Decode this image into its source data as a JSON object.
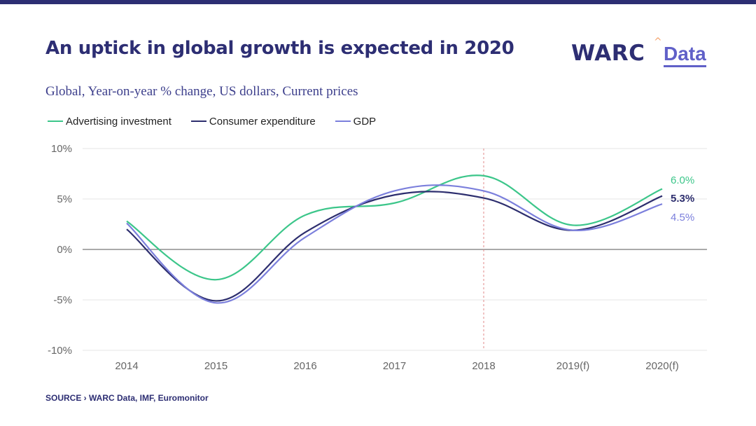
{
  "header": {
    "title": "An uptick in global growth is expected in 2020",
    "subtitle": "Global, Year-on-year % change, US dollars, Current prices"
  },
  "logo": {
    "warc": "WARC",
    "data": "Data"
  },
  "footer": {
    "source": "SOURCE › WARC  Data, IMF, Euromonitor"
  },
  "colors": {
    "bar": "#2d2e73",
    "divider": "#e08a8a"
  },
  "chart_data": {
    "type": "line",
    "title": "",
    "xlabel": "",
    "ylabel": "",
    "categories": [
      "2014",
      "2015",
      "2016",
      "2017",
      "2018",
      "2019(f)",
      "2020(f)"
    ],
    "ylim": [
      -10,
      10
    ],
    "yticks": [
      10,
      5,
      0,
      -5,
      -10
    ],
    "ytick_labels": [
      "10%",
      "5%",
      "0%",
      "-5%",
      "-10%"
    ],
    "grid": true,
    "legend_position": "top-left",
    "divider_at": "2018",
    "series": [
      {
        "name": "Advertising investment",
        "color": "#3cc68a",
        "values": [
          2.8,
          -3.0,
          3.4,
          4.6,
          7.3,
          2.4,
          6.0
        ],
        "end_label": "6.0%"
      },
      {
        "name": "Consumer expenditure",
        "color": "#2d2e6e",
        "values": [
          2.0,
          -5.1,
          1.7,
          5.4,
          5.1,
          1.9,
          5.3
        ],
        "end_label": "5.3%"
      },
      {
        "name": "GDP",
        "color": "#7b7fdc",
        "values": [
          2.6,
          -5.3,
          1.2,
          5.8,
          5.8,
          1.9,
          4.5
        ],
        "end_label": "4.5%"
      }
    ]
  }
}
